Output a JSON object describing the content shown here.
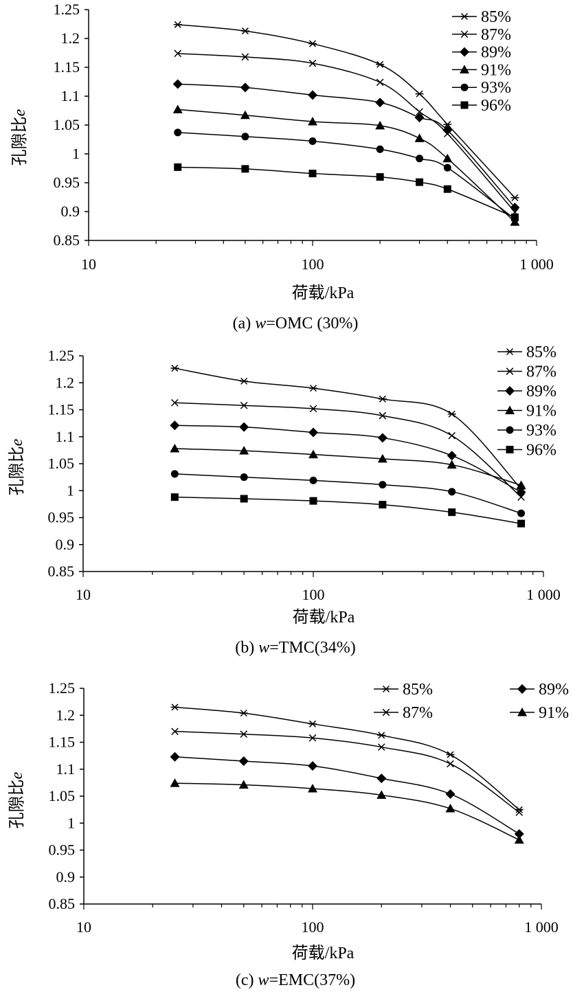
{
  "chart_data": [
    {
      "type": "line",
      "caption_prefix": "(a) ",
      "caption_var": "w",
      "caption_suffix": "=OMC (30%)",
      "xlabel": "荷载/kPa",
      "ylabel_cn": "孔隙比",
      "ylabel_var": "e",
      "xscale": "log",
      "xlim": [
        10,
        1000
      ],
      "xticks": [
        "10",
        "100",
        "1 000"
      ],
      "ylim": [
        0.85,
        1.25
      ],
      "yticks": [
        "0.85",
        "0.9",
        "0.95",
        "1",
        "1.05",
        "1.1",
        "1.15",
        "1.2",
        "1.25"
      ],
      "legend_position": "top-right",
      "legend_columns": 1,
      "x": [
        25,
        50,
        100,
        200,
        300,
        400,
        800
      ],
      "series": [
        {
          "name": "85%",
          "marker": "asterisk",
          "values": [
            1.224,
            1.213,
            1.191,
            1.155,
            1.104,
            1.051,
            0.924
          ]
        },
        {
          "name": "87%",
          "marker": "x",
          "values": [
            1.174,
            1.168,
            1.157,
            1.124,
            1.073,
            1.035,
            0.899
          ]
        },
        {
          "name": "89%",
          "marker": "diamond",
          "values": [
            1.121,
            1.115,
            1.102,
            1.089,
            1.063,
            1.041,
            0.907
          ]
        },
        {
          "name": "91%",
          "marker": "triangle",
          "values": [
            1.077,
            1.067,
            1.056,
            1.049,
            1.027,
            0.992,
            0.882
          ]
        },
        {
          "name": "93%",
          "marker": "circle",
          "values": [
            1.037,
            1.03,
            1.022,
            1.008,
            0.992,
            0.976,
            0.887
          ]
        },
        {
          "name": "96%",
          "marker": "square",
          "values": [
            0.977,
            0.974,
            0.966,
            0.96,
            0.951,
            0.939,
            0.89
          ]
        }
      ]
    },
    {
      "type": "line",
      "caption_prefix": "(b) ",
      "caption_var": "w",
      "caption_suffix": "=TMC(34%)",
      "xlabel": "荷载/kPa",
      "ylabel_cn": "孔隙比",
      "ylabel_var": "e",
      "xscale": "log",
      "xlim": [
        10,
        1000
      ],
      "xticks": [
        "10",
        "100",
        "1 000"
      ],
      "ylim": [
        0.85,
        1.25
      ],
      "yticks": [
        "0.85",
        "0.9",
        "0.95",
        "1",
        "1.05",
        "1.1",
        "1.15",
        "1.2",
        "1.25"
      ],
      "legend_position": "top-right",
      "legend_columns": 1,
      "x": [
        25,
        50,
        100,
        200,
        400,
        800
      ],
      "series": [
        {
          "name": "85%",
          "marker": "asterisk",
          "values": [
            1.227,
            1.203,
            1.19,
            1.17,
            1.142,
            1.003
          ]
        },
        {
          "name": "87%",
          "marker": "x",
          "values": [
            1.163,
            1.158,
            1.152,
            1.139,
            1.102,
            0.988
          ]
        },
        {
          "name": "89%",
          "marker": "diamond",
          "values": [
            1.121,
            1.118,
            1.108,
            1.098,
            1.065,
            0.997
          ]
        },
        {
          "name": "91%",
          "marker": "triangle",
          "values": [
            1.078,
            1.074,
            1.067,
            1.059,
            1.048,
            1.01
          ]
        },
        {
          "name": "93%",
          "marker": "circle",
          "values": [
            1.031,
            1.025,
            1.019,
            1.011,
            0.998,
            0.958
          ]
        },
        {
          "name": "96%",
          "marker": "square",
          "values": [
            0.988,
            0.985,
            0.981,
            0.974,
            0.96,
            0.939
          ]
        }
      ]
    },
    {
      "type": "line",
      "caption_prefix": "(c) ",
      "caption_var": "w",
      "caption_suffix": "=EMC(37%)",
      "xlabel": "荷载/kPa",
      "ylabel_cn": "孔隙比",
      "ylabel_var": "e",
      "xscale": "log",
      "xlim": [
        10,
        1000
      ],
      "xticks": [
        "10",
        "100",
        "1 000"
      ],
      "ylim": [
        0.85,
        1.25
      ],
      "yticks": [
        "0.85",
        "0.9",
        "0.95",
        "1",
        "1.05",
        "1.1",
        "1.15",
        "1.2",
        "1.25"
      ],
      "legend_position": "top-right",
      "legend_columns": 2,
      "x": [
        25,
        50,
        100,
        200,
        400,
        800
      ],
      "series": [
        {
          "name": "85%",
          "marker": "asterisk",
          "values": [
            1.215,
            1.204,
            1.184,
            1.163,
            1.127,
            1.025
          ]
        },
        {
          "name": "87%",
          "marker": "x",
          "values": [
            1.17,
            1.165,
            1.158,
            1.141,
            1.11,
            1.02
          ]
        },
        {
          "name": "89%",
          "marker": "diamond",
          "values": [
            1.123,
            1.115,
            1.106,
            1.083,
            1.054,
            0.98
          ]
        },
        {
          "name": "91%",
          "marker": "triangle",
          "values": [
            1.074,
            1.071,
            1.064,
            1.052,
            1.027,
            0.969
          ]
        }
      ]
    }
  ]
}
